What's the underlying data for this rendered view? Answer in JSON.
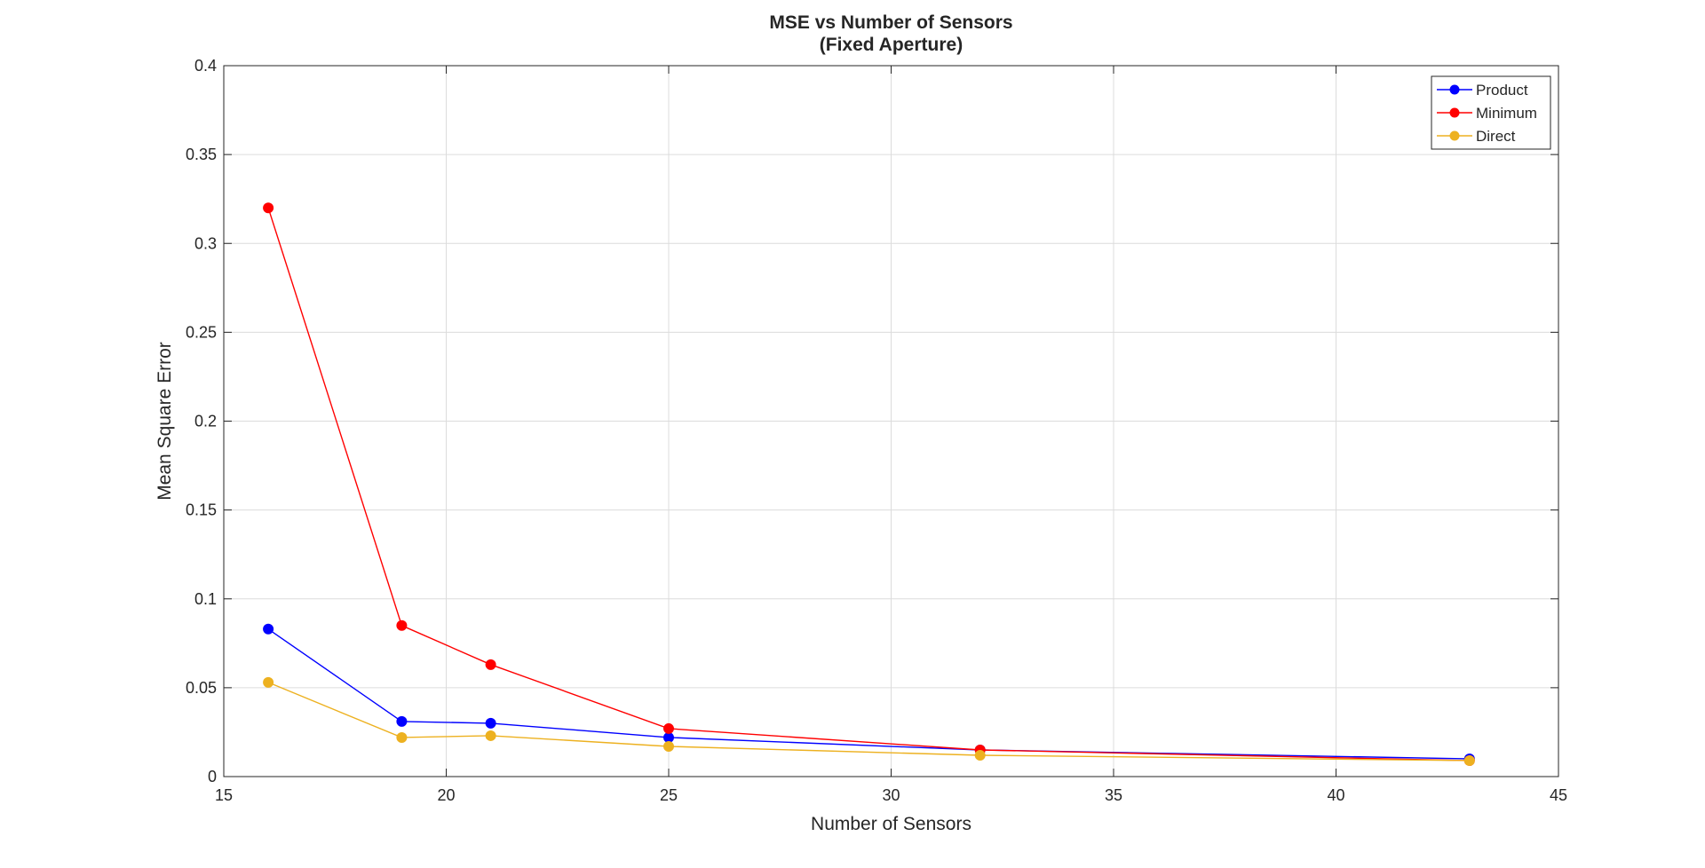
{
  "chart_data": {
    "type": "line",
    "title": "MSE vs Number of Sensors",
    "subtitle": "(Fixed Aperture)",
    "xlabel": "Number of Sensors",
    "ylabel": "Mean Square Error",
    "xlim": [
      15,
      45
    ],
    "ylim": [
      0,
      0.4
    ],
    "x_ticks": [
      15,
      20,
      25,
      30,
      35,
      40,
      45
    ],
    "x_tick_labels": [
      "15",
      "20",
      "25",
      "30",
      "35",
      "40",
      "45"
    ],
    "y_ticks": [
      0,
      0.05,
      0.1,
      0.15,
      0.2,
      0.25,
      0.3,
      0.35,
      0.4
    ],
    "y_tick_labels": [
      "0",
      "0.05",
      "0.1",
      "0.15",
      "0.2",
      "0.25",
      "0.3",
      "0.35",
      "0.4"
    ],
    "grid": true,
    "legend_position": "top-right",
    "x": [
      16,
      19,
      21,
      25,
      32,
      43
    ],
    "series": [
      {
        "name": "Product",
        "color": "#0000ff",
        "values": [
          0.083,
          0.031,
          0.03,
          0.022,
          0.015,
          0.01
        ]
      },
      {
        "name": "Minimum",
        "color": "#ff0000",
        "values": [
          0.32,
          0.085,
          0.063,
          0.027,
          0.015,
          0.009
        ]
      },
      {
        "name": "Direct",
        "color": "#edb120",
        "values": [
          0.053,
          0.022,
          0.023,
          0.017,
          0.012,
          0.009
        ]
      }
    ]
  }
}
